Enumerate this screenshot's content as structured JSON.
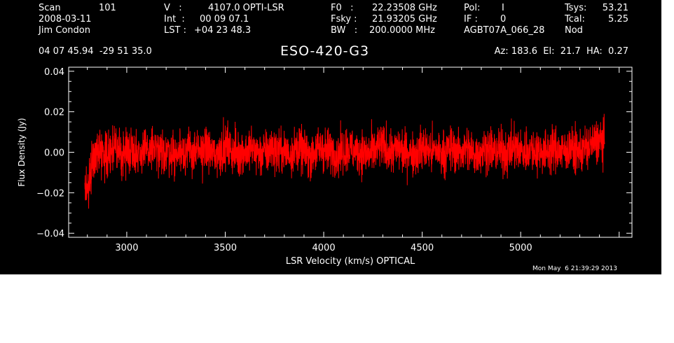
{
  "header": {
    "col1": {
      "scan_label": "Scan",
      "scan_value": "101",
      "date": "2008-03-11",
      "observer": "Jim Condon"
    },
    "col2": {
      "v_label": "V   :",
      "v_value": "4107.0 OPTI-LSR",
      "int_label": "Int  :",
      "int_value": "00 09 07.1",
      "lst_label": "LST :",
      "lst_value": "+04 23 48.3"
    },
    "col3": {
      "f0_label": "F0   :",
      "f0_value": "22.23508 GHz",
      "fsky_label": "Fsky :",
      "fsky_value": "21.93205 GHz",
      "bw_label": "BW   :",
      "bw_value": "200.0000 MHz"
    },
    "col4": {
      "pol_label": "Pol:",
      "pol_value": "I",
      "if_label": "IF :",
      "if_value": "0",
      "project": "AGBT07A_066_28"
    },
    "col5": {
      "tsys_label": "Tsys:",
      "tsys_value": "53.21",
      "tcal_label": "Tcal:",
      "tcal_value": "5.25",
      "mode": "Nod"
    },
    "coords": "04 07 45.94  -29 51 35.0",
    "source": "ESO-420-G3",
    "azelha": "Az: 183.6  El:  21.7  HA:  0.27"
  },
  "timestamp": "Mon May  6 21:39:29 2013",
  "colors": {
    "background": "#000000",
    "foreground": "#ffffff",
    "trace": "#ff0000"
  },
  "chart_data": {
    "type": "line",
    "xlabel": "LSR Velocity (km/s) OPTICAL",
    "ylabel": "Flux Density (Jy)",
    "xlim": [
      2705,
      5565
    ],
    "ylim": [
      -0.042,
      0.042
    ],
    "xticks": [
      3000,
      3500,
      4000,
      4500,
      5000
    ],
    "xtick_labels": [
      "3000",
      "3500",
      "4000",
      "4500",
      "5000"
    ],
    "yticks": [
      -0.04,
      -0.02,
      0.0,
      0.02,
      0.04
    ],
    "ytick_labels": [
      "−0.04",
      "−0.02",
      "0.00",
      "0.02",
      "0.04"
    ],
    "grid": false,
    "series": [
      {
        "x_start": 2787,
        "x_step": 20,
        "y_mean": [
          -0.022,
          -0.015,
          -0.003,
          0.0,
          0.001,
          0.0,
          -0.001,
          0.002,
          0.001,
          0.0,
          -0.001,
          0.001,
          0.002,
          0.0,
          -0.001,
          0.001,
          0.0,
          0.002,
          0.001,
          -0.001,
          0.0,
          0.001,
          0.0,
          -0.002,
          0.001,
          0.002,
          0.0,
          0.001,
          -0.001,
          0.0,
          0.001,
          0.002,
          0.0,
          -0.001,
          0.0,
          0.001,
          0.003,
          0.001,
          0.0,
          -0.001,
          0.001,
          0.0,
          0.002,
          0.001,
          0.0,
          -0.001,
          0.0,
          0.001,
          0.002,
          0.0,
          0.001,
          0.0,
          -0.001,
          0.001,
          0.002,
          0.001,
          0.0,
          -0.002,
          0.0,
          0.001,
          0.002,
          0.001,
          0.0,
          0.001,
          -0.001,
          0.0,
          0.001,
          0.002,
          0.001,
          0.0,
          0.001,
          0.0,
          -0.001,
          0.0,
          0.001,
          0.003,
          0.002,
          0.001,
          0.0,
          0.001,
          0.002,
          0.0,
          0.001,
          -0.001,
          0.0,
          0.001,
          0.002,
          0.001,
          0.0,
          0.001,
          0.0,
          -0.001,
          0.001,
          0.002,
          0.001,
          0.0,
          0.001,
          0.002,
          0.0,
          -0.001,
          0.0,
          0.001,
          0.002,
          0.001,
          0.0,
          0.001,
          0.0,
          -0.001,
          0.001,
          0.002,
          0.001,
          0.0,
          0.001,
          0.002,
          0.001,
          0.0,
          0.001,
          0.0,
          0.001,
          0.002,
          0.001,
          0.0,
          0.001,
          0.002,
          0.001,
          0.0,
          0.001,
          0.002,
          0.003,
          0.004,
          0.005,
          0.006,
          0.004
        ],
        "noise_rms": 0.0055
      }
    ]
  }
}
